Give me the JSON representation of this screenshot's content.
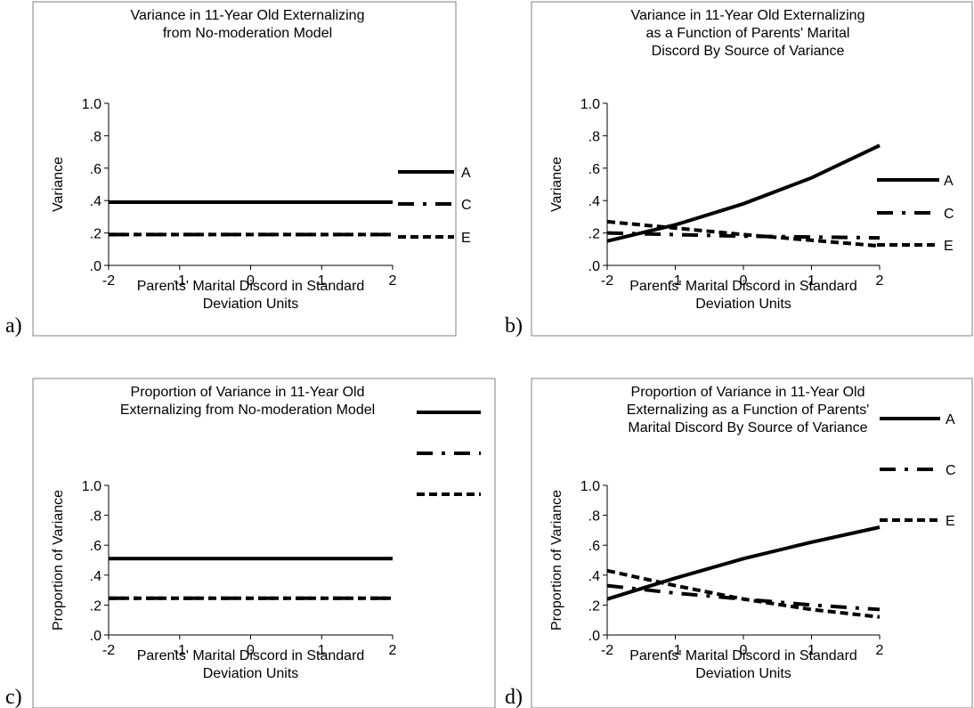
{
  "panels": [
    {
      "label": "a)",
      "chart_data": {
        "type": "line",
        "title": [
          "Variance in 11-Year Old Externalizing",
          "from No-moderation Model"
        ],
        "xlabel": [
          "Parents' Marital Discord in Standard",
          "Deviation Units"
        ],
        "ylabel": "Variance",
        "xlim": [
          -2,
          2
        ],
        "ylim": [
          0,
          1
        ],
        "xticks": [
          "-2",
          "-1",
          "0",
          "1",
          "2"
        ],
        "yticks": [
          ".0",
          ".2",
          ".4",
          ".6",
          ".8",
          "1.0"
        ],
        "series": [
          {
            "name": "A",
            "style": "solid",
            "x": [
              -2,
              2
            ],
            "y": [
              0.39,
              0.39
            ]
          },
          {
            "name": "C",
            "style": "dashdot",
            "x": [
              -2,
              2
            ],
            "y": [
              0.19,
              0.19
            ]
          },
          {
            "name": "E",
            "style": "dash",
            "x": [
              -2,
              2
            ],
            "y": [
              0.19,
              0.19
            ]
          }
        ],
        "legend": "right"
      }
    },
    {
      "label": "b)",
      "chart_data": {
        "type": "line",
        "title": [
          "Variance in 11-Year Old Externalizing",
          "as a Function of Parents' Marital",
          "Discord By Source of Variance"
        ],
        "xlabel": [
          "Parents' Marital Discord in Standard",
          "Deviation Units"
        ],
        "ylabel": "Variance",
        "xlim": [
          -2,
          2
        ],
        "ylim": [
          0,
          1
        ],
        "xticks": [
          "-2",
          "-1",
          "0",
          "1",
          "2"
        ],
        "yticks": [
          ".0",
          ".2",
          ".4",
          ".6",
          ".8",
          "1.0"
        ],
        "series": [
          {
            "name": "A",
            "style": "solid",
            "x": [
              -2,
              -1,
              0,
              1,
              2
            ],
            "y": [
              0.15,
              0.25,
              0.38,
              0.54,
              0.74
            ]
          },
          {
            "name": "C",
            "style": "dashdot",
            "x": [
              -2,
              -1,
              0,
              1,
              2
            ],
            "y": [
              0.2,
              0.19,
              0.18,
              0.175,
              0.17
            ]
          },
          {
            "name": "E",
            "style": "dash",
            "x": [
              -2,
              -1,
              0,
              1,
              2
            ],
            "y": [
              0.27,
              0.23,
              0.19,
              0.155,
              0.12
            ]
          }
        ],
        "legend": "right"
      }
    },
    {
      "label": "c)",
      "chart_data": {
        "type": "line",
        "title": [
          "Proportion of Variance in 11-Year Old",
          "Externalizing from No-moderation Model"
        ],
        "xlabel": [
          "Parents' Marital Discord in Standard",
          "Deviation Units"
        ],
        "ylabel": "Proportion of  Variance",
        "xlim": [
          -2,
          2
        ],
        "ylim": [
          0,
          1
        ],
        "xticks": [
          "-2",
          "-1",
          "0",
          "1",
          "2"
        ],
        "yticks": [
          ".0",
          ".2",
          ".4",
          ".6",
          ".8",
          "1.0"
        ],
        "series": [
          {
            "name": "",
            "style": "solid",
            "x": [
              -2,
              2
            ],
            "y": [
              0.51,
              0.51
            ]
          },
          {
            "name": "",
            "style": "dashdot",
            "x": [
              -2,
              2
            ],
            "y": [
              0.245,
              0.245
            ]
          },
          {
            "name": "",
            "style": "dash",
            "x": [
              -2,
              2
            ],
            "y": [
              0.245,
              0.245
            ]
          }
        ],
        "legend": "right"
      }
    },
    {
      "label": "d)",
      "chart_data": {
        "type": "line",
        "title": [
          "Proportion of Variance in  11-Year Old",
          "Externalizing as a Function of Parents'",
          "Marital Discord By Source of Variance"
        ],
        "xlabel": [
          "Parents' Marital Discord in Standard",
          "Deviation Units"
        ],
        "ylabel": "Proportion of Variance",
        "xlim": [
          -2,
          2
        ],
        "ylim": [
          0,
          1
        ],
        "xticks": [
          "-2",
          "-1",
          "0",
          "1",
          "2"
        ],
        "yticks": [
          ".0",
          ".2",
          ".4",
          ".6",
          ".8",
          "1.0"
        ],
        "series": [
          {
            "name": "A",
            "style": "solid",
            "x": [
              -2,
              -1,
              0,
              1,
              2
            ],
            "y": [
              0.24,
              0.38,
              0.51,
              0.62,
              0.72
            ]
          },
          {
            "name": "C",
            "style": "dashdot",
            "x": [
              -2,
              -1,
              0,
              1,
              2
            ],
            "y": [
              0.33,
              0.28,
              0.24,
              0.2,
              0.17
            ]
          },
          {
            "name": "E",
            "style": "dash",
            "x": [
              -2,
              -1,
              0,
              1,
              2
            ],
            "y": [
              0.43,
              0.33,
              0.24,
              0.17,
              0.12
            ]
          }
        ],
        "legend": "top-right"
      }
    }
  ]
}
